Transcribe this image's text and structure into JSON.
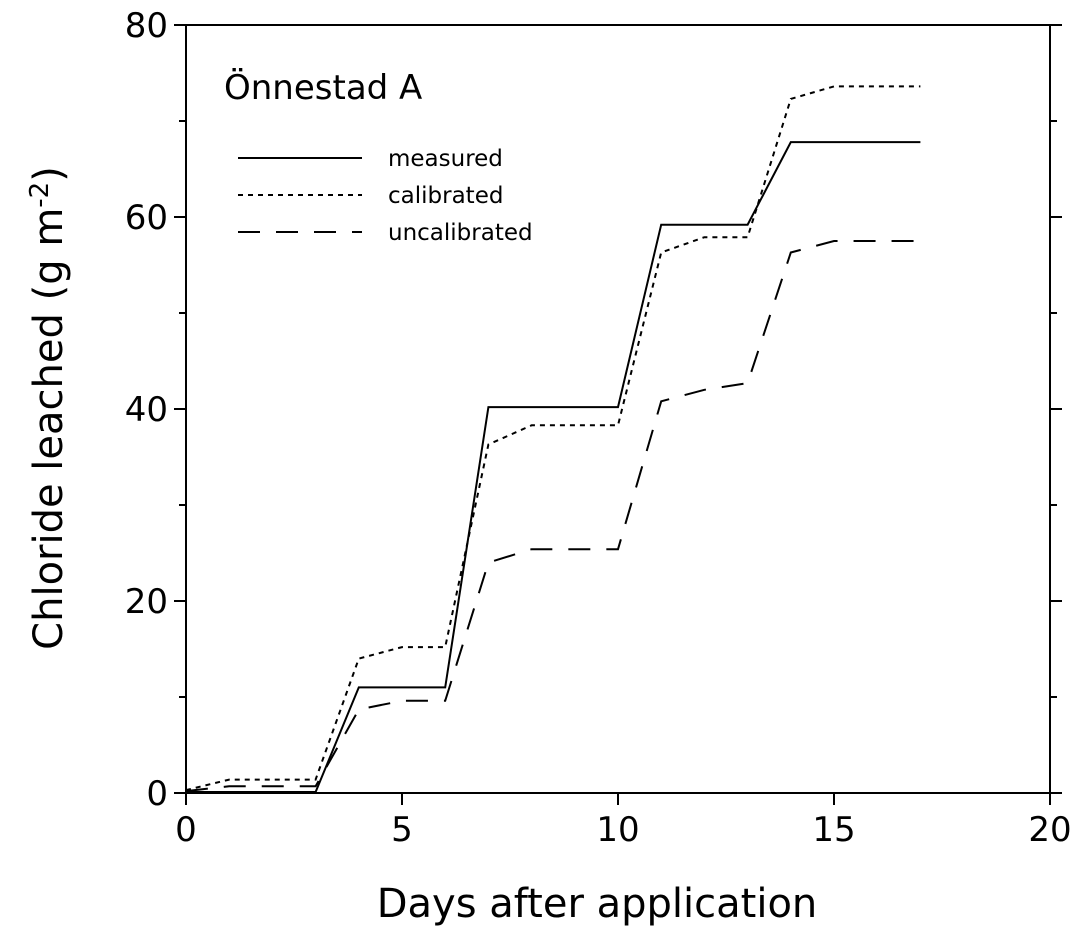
{
  "chart_data": {
    "type": "line",
    "title": "Önnestad A",
    "xlabel": "Days after application",
    "ylabel_main": "Chloride leached (g m",
    "ylabel_sup": "-2",
    "ylabel_close": ")",
    "xlim": [
      0,
      20
    ],
    "ylim": [
      0,
      80
    ],
    "x_ticks": [
      0,
      5,
      10,
      15,
      20
    ],
    "x_tick_labels": [
      "0",
      "5",
      "10",
      "15",
      "20"
    ],
    "y_ticks": [
      0,
      20,
      40,
      60,
      80
    ],
    "y_tick_labels": [
      "0",
      "20",
      "40",
      "60",
      "80"
    ],
    "y_minor_ticks": [
      10,
      30,
      50,
      70
    ],
    "grid": false,
    "legend_position": "top-left",
    "series": [
      {
        "name": "measured",
        "style": "solid",
        "x": [
          0,
          3,
          4,
          6,
          7,
          10,
          11,
          13,
          14,
          17
        ],
        "y": [
          0.1,
          0.1,
          11.0,
          11.0,
          40.2,
          40.2,
          59.2,
          59.2,
          67.8,
          67.8
        ]
      },
      {
        "name": "calibrated",
        "style": "dotted",
        "x": [
          0,
          1,
          3,
          4,
          5,
          6,
          7,
          8,
          10,
          11,
          12,
          13,
          14,
          15,
          17
        ],
        "y": [
          0.3,
          1.4,
          1.4,
          14.0,
          15.2,
          15.2,
          36.3,
          38.3,
          38.3,
          56.3,
          57.9,
          57.9,
          72.3,
          73.6,
          73.6
        ]
      },
      {
        "name": "uncalibrated",
        "style": "dashed",
        "x": [
          0,
          1,
          3,
          4,
          5,
          6,
          7,
          8,
          10,
          11,
          12,
          13,
          14,
          15,
          17
        ],
        "y": [
          0.2,
          0.7,
          0.7,
          8.7,
          9.6,
          9.6,
          24.0,
          25.4,
          25.4,
          40.8,
          42.0,
          42.7,
          56.3,
          57.5,
          57.5
        ]
      }
    ]
  }
}
